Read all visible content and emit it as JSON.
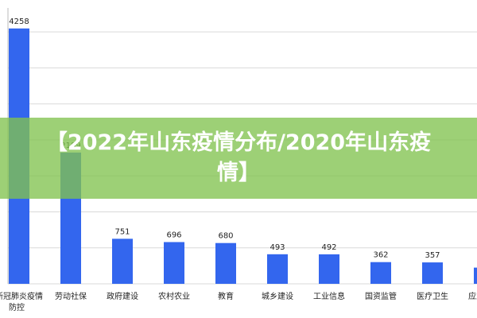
{
  "chart_data": {
    "type": "bar",
    "title": "【2022年山东疫情分布/2020年山东疫情】",
    "categories": [
      "新冠肺炎疫情防控",
      "劳动社保",
      "政府建设",
      "农村农业",
      "教育",
      "城乡建设",
      "工业信息",
      "国资监管",
      "医疗卫生",
      "应急管理"
    ],
    "values": [
      4258,
      2189,
      751,
      696,
      680,
      493,
      492,
      362,
      357,
      270
    ],
    "value_labels": [
      "4258",
      "2189",
      "751",
      "696",
      "680",
      "493",
      "492",
      "362",
      "357",
      null
    ],
    "color": "#3366ee",
    "ylim": [
      0,
      4600
    ],
    "yticks": [
      0,
      600,
      1200,
      1800,
      2400,
      3000,
      3600,
      4200
    ],
    "grid": true
  }
}
